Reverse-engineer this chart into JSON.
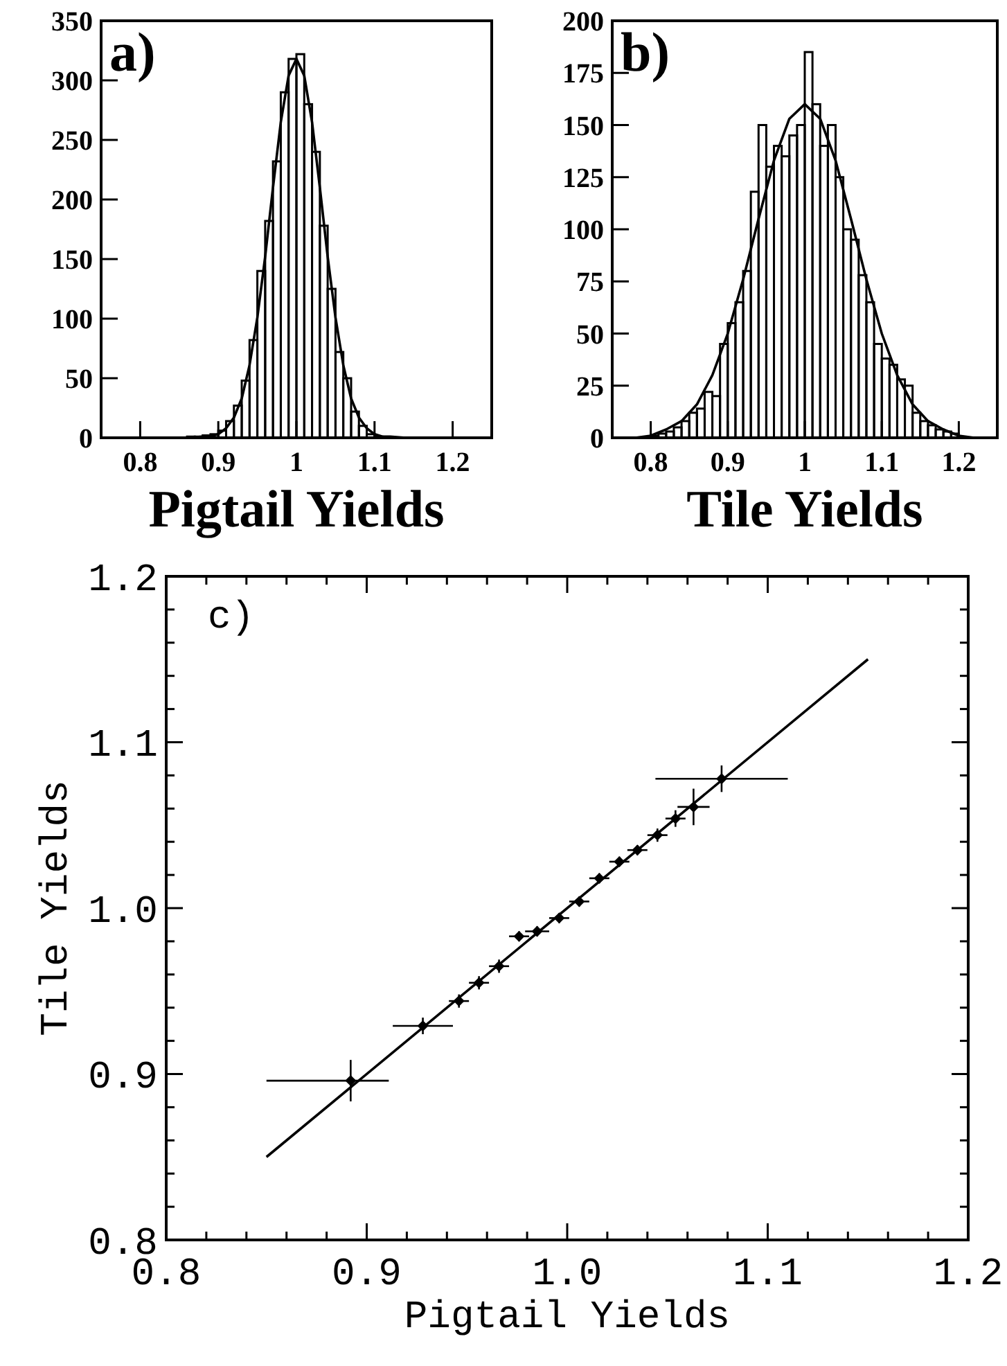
{
  "chart_data": [
    {
      "type": "histogram",
      "annotations": [
        "a)"
      ],
      "xlabel": "Pigtail Yields",
      "bins": [
        0.86,
        0.87,
        0.88,
        0.89,
        0.9,
        0.91,
        0.92,
        0.93,
        0.94,
        0.95,
        0.96,
        0.97,
        0.98,
        0.99,
        1.0,
        1.01,
        1.02,
        1.03,
        1.04,
        1.05,
        1.06,
        1.07,
        1.08,
        1.09,
        1.1,
        1.11,
        1.12
      ],
      "values": [
        1,
        1,
        2,
        3,
        6,
        14,
        27,
        48,
        82,
        140,
        182,
        232,
        290,
        318,
        322,
        280,
        240,
        178,
        125,
        72,
        50,
        22,
        10,
        3,
        1,
        0
      ],
      "color": "#000000",
      "series": [
        {
          "type": "line",
          "color": "#000000",
          "x": [
            0.86,
            0.88,
            0.89,
            0.9,
            0.91,
            0.92,
            0.93,
            0.94,
            0.95,
            0.96,
            0.97,
            0.98,
            0.99,
            1.0,
            1.01,
            1.02,
            1.03,
            1.04,
            1.05,
            1.06,
            1.07,
            1.08,
            1.09,
            1.1,
            1.11,
            1.12,
            1.14
          ],
          "values": [
            0,
            1,
            1,
            3,
            8,
            17,
            33,
            61,
            101,
            152,
            210,
            265,
            304,
            318,
            304,
            265,
            210,
            152,
            101,
            61,
            33,
            17,
            8,
            3,
            1,
            1,
            0
          ]
        }
      ],
      "xlim": [
        0.75,
        1.25
      ],
      "xticks": [
        0.8,
        0.9,
        1,
        1.1,
        1.2
      ],
      "ylim": [
        0,
        350
      ],
      "yticks": [
        0,
        50,
        100,
        150,
        200,
        250,
        300,
        350
      ],
      "grid": false
    },
    {
      "type": "histogram",
      "annotations": [
        "b)"
      ],
      "xlabel": "Tile Yields",
      "bins": [
        0.8,
        0.81,
        0.82,
        0.83,
        0.84,
        0.85,
        0.86,
        0.87,
        0.88,
        0.89,
        0.9,
        0.91,
        0.92,
        0.93,
        0.94,
        0.95,
        0.96,
        0.97,
        0.98,
        0.99,
        1.0,
        1.01,
        1.02,
        1.03,
        1.04,
        1.05,
        1.06,
        1.07,
        1.08,
        1.09,
        1.1,
        1.11,
        1.12,
        1.13,
        1.14,
        1.15,
        1.16,
        1.17,
        1.18,
        1.19,
        1.2
      ],
      "values": [
        1,
        2,
        3,
        5,
        8,
        12,
        14,
        22,
        20,
        45,
        55,
        65,
        80,
        118,
        150,
        130,
        140,
        135,
        145,
        150,
        185,
        160,
        140,
        150,
        125,
        100,
        95,
        78,
        65,
        45,
        38,
        35,
        28,
        25,
        12,
        8,
        6,
        4,
        3,
        2
      ],
      "color": "#000000",
      "series": [
        {
          "type": "line",
          "color": "#000000",
          "x": [
            0.78,
            0.8,
            0.82,
            0.84,
            0.86,
            0.88,
            0.9,
            0.92,
            0.94,
            0.96,
            0.98,
            1.0,
            1.02,
            1.04,
            1.06,
            1.08,
            1.1,
            1.12,
            1.14,
            1.16,
            1.18,
            1.2,
            1.22
          ],
          "values": [
            0,
            1,
            4,
            8,
            16,
            30,
            50,
            76,
            105,
            133,
            153,
            160,
            153,
            133,
            105,
            76,
            50,
            30,
            16,
            8,
            4,
            1,
            0
          ]
        }
      ],
      "xlim": [
        0.75,
        1.25
      ],
      "xticks": [
        0.8,
        0.9,
        1,
        1.1,
        1.2
      ],
      "ylim": [
        0,
        200
      ],
      "yticks": [
        0,
        25,
        50,
        75,
        100,
        125,
        150,
        175,
        200
      ],
      "grid": false
    },
    {
      "type": "scatter",
      "annotations": [
        "c)"
      ],
      "xlabel": "Pigtail Yields",
      "ylabel": "Tile Yields",
      "series": [
        {
          "type": "scatter",
          "color": "#000000",
          "marker": "diamond",
          "x": [
            0.892,
            0.928,
            0.946,
            0.956,
            0.966,
            0.976,
            0.985,
            0.996,
            1.006,
            1.016,
            1.026,
            1.035,
            1.045,
            1.054,
            1.063,
            1.077
          ],
          "values": [
            0.896,
            0.929,
            0.944,
            0.955,
            0.965,
            0.983,
            0.986,
            0.994,
            1.004,
            1.018,
            1.028,
            1.035,
            1.044,
            1.054,
            1.061,
            1.078
          ],
          "xerrors": [
            [
              0.85,
              0.911
            ],
            0.015,
            0.005,
            0.005,
            0.005,
            0.005,
            0.006,
            0.005,
            0.005,
            0.005,
            0.005,
            0.005,
            0.005,
            0.005,
            0.008,
            0.033
          ],
          "errors": [
            0.0125,
            0.005,
            0.004,
            0.004,
            0.004,
            0.003,
            0.003,
            0.003,
            0.003,
            0.003,
            0.003,
            0.003,
            0.004,
            0.005,
            0.011,
            0.008
          ]
        },
        {
          "type": "line",
          "color": "#000000",
          "x": [
            0.85,
            1.15
          ],
          "values": [
            0.85,
            1.15
          ]
        }
      ],
      "xlim": [
        0.8,
        1.2
      ],
      "xticks": [
        0.8,
        {
          "value": 0.82,
          "label": null
        },
        {
          "value": 0.84,
          "label": null
        },
        {
          "value": 0.86,
          "label": null
        },
        {
          "value": 0.88,
          "label": null
        },
        0.9,
        {
          "value": 0.92,
          "label": null
        },
        {
          "value": 0.94,
          "label": null
        },
        {
          "value": 0.96,
          "label": null
        },
        {
          "value": 0.98,
          "label": null
        },
        {
          "value": 1,
          "label": "1.0"
        },
        {
          "value": 1.02,
          "label": null
        },
        {
          "value": 1.04,
          "label": null
        },
        {
          "value": 1.06,
          "label": null
        },
        {
          "value": 1.08,
          "label": null
        },
        1.1,
        {
          "value": 1.12,
          "label": null
        },
        {
          "value": 1.14,
          "label": null
        },
        {
          "value": 1.16,
          "label": null
        },
        {
          "value": 1.18,
          "label": null
        },
        1.2
      ],
      "ylim": [
        0.8,
        1.2
      ],
      "yticks": [
        0.8,
        {
          "value": 0.82,
          "label": null
        },
        {
          "value": 0.84,
          "label": null
        },
        {
          "value": 0.86,
          "label": null
        },
        {
          "value": 0.88,
          "label": null
        },
        0.9,
        {
          "value": 0.92,
          "label": null
        },
        {
          "value": 0.94,
          "label": null
        },
        {
          "value": 0.96,
          "label": null
        },
        {
          "value": 0.98,
          "label": null
        },
        {
          "value": 1,
          "label": "1.0"
        },
        {
          "value": 1.02,
          "label": null
        },
        {
          "value": 1.04,
          "label": null
        },
        {
          "value": 1.06,
          "label": null
        },
        {
          "value": 1.08,
          "label": null
        },
        1.1,
        {
          "value": 1.12,
          "label": null
        },
        {
          "value": 1.14,
          "label": null
        },
        {
          "value": 1.16,
          "label": null
        },
        {
          "value": 1.18,
          "label": null
        },
        1.2
      ],
      "grid": false
    }
  ]
}
